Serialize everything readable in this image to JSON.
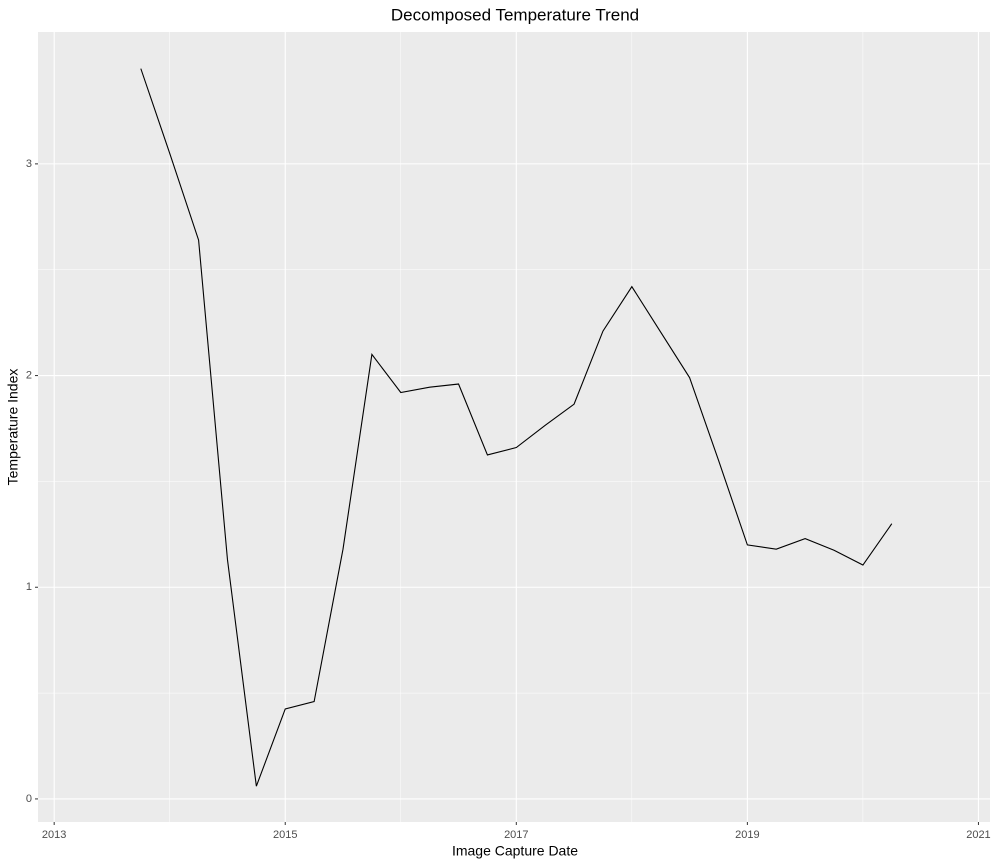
{
  "chart_data": {
    "type": "line",
    "title": "Decomposed Temperature Trend",
    "x_label": "Image Capture Date",
    "y_label": "Temperature Index",
    "x": [
      2013.75,
      2014.0,
      2014.25,
      2014.5,
      2014.75,
      2015.0,
      2015.25,
      2015.5,
      2015.75,
      2016.0,
      2016.25,
      2016.5,
      2016.75,
      2017.0,
      2017.25,
      2017.5,
      2017.75,
      2018.0,
      2018.25,
      2018.5,
      2018.75,
      2019.0,
      2019.25,
      2019.5,
      2019.75,
      2020.0,
      2020.25
    ],
    "values": [
      3.45,
      3.05,
      2.64,
      1.13,
      0.06,
      0.425,
      0.46,
      1.18,
      2.1,
      1.92,
      1.945,
      1.96,
      1.625,
      1.66,
      1.765,
      1.865,
      2.21,
      2.42,
      2.205,
      1.99,
      1.6,
      1.2,
      1.18,
      1.23,
      1.175,
      1.105,
      1.3
    ],
    "color": "#000000",
    "xlim": [
      2012.86,
      2021.1
    ],
    "xticks": [
      2013,
      2015,
      2017,
      2019,
      2021
    ],
    "ylim": [
      -0.109,
      3.623
    ],
    "yticks": [
      0,
      1,
      2,
      3
    ],
    "grid": true
  }
}
